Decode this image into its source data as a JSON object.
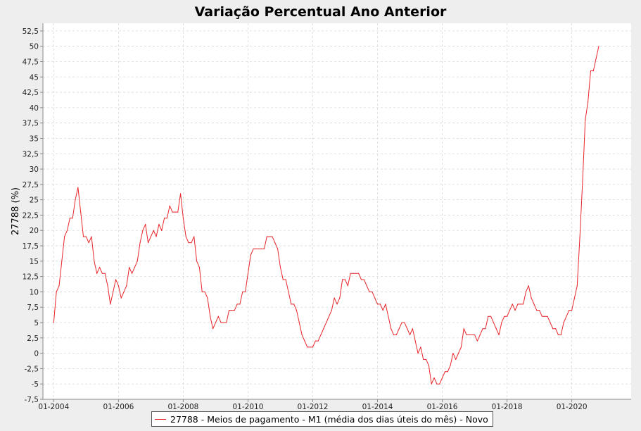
{
  "chart_data": {
    "type": "line",
    "title": "Variação Percentual Ano Anterior",
    "ylabel": "27788 (%)",
    "xlabel": "",
    "x_tick_labels": [
      "01-2004",
      "01-2006",
      "01-2008",
      "01-2010",
      "01-2012",
      "01-2014",
      "01-2016",
      "01-2018",
      "01-2020"
    ],
    "y_tick_labels": [
      "-7,5",
      "-5",
      "-2,5",
      "0",
      "2,5",
      "5",
      "7,5",
      "10",
      "12,5",
      "15",
      "17,5",
      "20",
      "22,5",
      "25",
      "27,5",
      "30",
      "32,5",
      "35",
      "37,5",
      "40",
      "42,5",
      "45",
      "47,5",
      "50",
      "52,5"
    ],
    "ylim": [
      -7.5,
      53.75
    ],
    "xlim": [
      "2003-09",
      "2021-11"
    ],
    "grid": true,
    "legend_position": "bottom",
    "series": [
      {
        "name": "27788 - Meios de pagamento - M1 (média dos dias úteis do mês) - Novo",
        "color": "#e8252a",
        "x_start": "2004-01",
        "frequency": "monthly",
        "values": [
          5,
          10,
          11,
          15,
          19,
          20,
          22,
          22,
          25,
          27,
          23,
          19,
          19,
          18,
          19,
          15,
          13,
          14,
          13,
          13,
          11,
          8,
          10,
          12,
          11,
          9,
          10,
          11,
          14,
          13,
          14,
          15,
          18,
          20,
          21,
          18,
          19,
          20,
          19,
          21,
          20,
          22,
          22,
          24,
          23,
          23,
          23,
          26,
          22,
          19,
          18,
          18,
          19,
          15,
          14,
          10,
          10,
          9,
          6,
          4,
          5,
          6,
          5,
          5,
          5,
          7,
          7,
          7,
          8,
          8,
          10,
          10,
          13,
          16,
          17,
          17,
          17,
          17,
          17,
          19,
          19,
          19,
          18,
          17,
          14,
          12,
          12,
          10,
          8,
          8,
          7,
          5,
          3,
          2,
          1,
          1,
          1,
          2,
          2,
          3,
          4,
          5,
          6,
          7,
          9,
          8,
          9,
          12,
          12,
          11,
          13,
          13,
          13,
          13,
          12,
          12,
          11,
          10,
          10,
          9,
          8,
          8,
          7,
          8,
          6,
          4,
          3,
          3,
          4,
          5,
          5,
          4,
          3,
          4,
          2,
          0,
          1,
          -1,
          -1,
          -2,
          -5,
          -4,
          -5,
          -5,
          -4,
          -3,
          -3,
          -2,
          0,
          -1,
          0,
          1,
          4,
          3,
          3,
          3,
          3,
          2,
          3,
          4,
          4,
          6,
          6,
          5,
          4,
          3,
          5,
          6,
          6,
          7,
          8,
          7,
          8,
          8,
          8,
          10,
          11,
          9,
          8,
          7,
          7,
          6,
          6,
          6,
          5,
          4,
          4,
          3,
          3,
          5,
          6,
          7,
          7,
          9,
          11,
          19,
          28,
          38,
          41,
          46,
          46,
          48,
          50
        ]
      }
    ]
  },
  "legend": {
    "label": "27788 - Meios de pagamento - M1 (média dos dias úteis do mês) - Novo"
  }
}
